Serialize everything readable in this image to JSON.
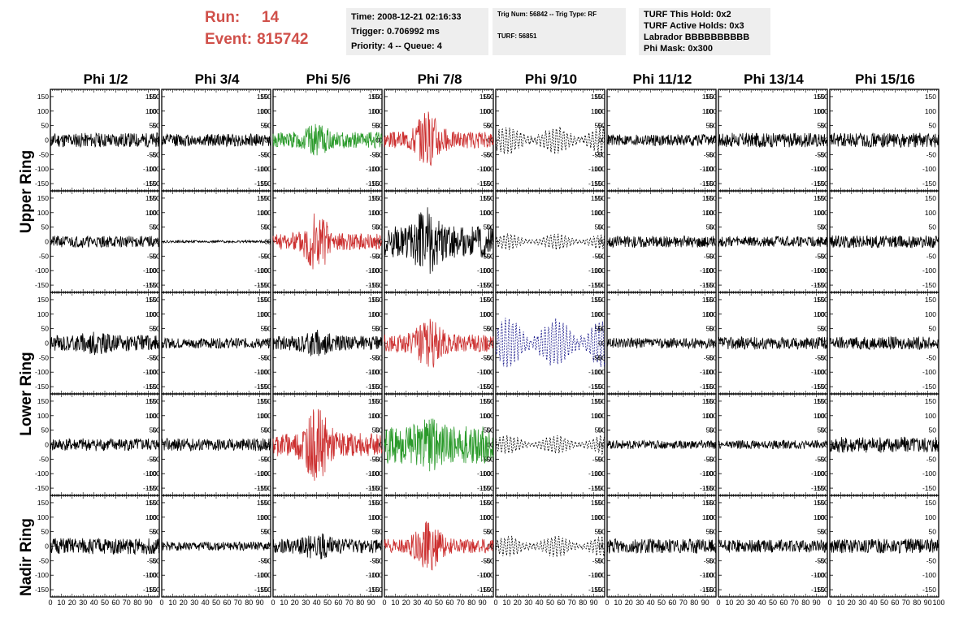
{
  "header": {
    "run_label": "Run:",
    "run_value": "14",
    "event_label": "Event:",
    "event_value": "815742",
    "accent_color": "#d0504a"
  },
  "info_time": {
    "time": "Time: 2008-12-21 02:16:33",
    "trigger": "Trigger: 0.706992 ms",
    "priority": "Priority: 4 -- Queue: 4"
  },
  "info_trig": {
    "trig": "Trig Num: 56842 -- Trig Type: RF",
    "turf": "TURF: 56851"
  },
  "info_turf": {
    "hold": "TURF This Hold: 0x2",
    "active": "TURF Active Holds: 0x3",
    "labrador": "Labrador BBBBBBBBBB",
    "phimask": "Phi Mask: 0x300"
  },
  "columns": [
    "Phi 1/2",
    "Phi 3/4",
    "Phi 5/6",
    "Phi 7/8",
    "Phi 9/10",
    "Phi 11/12",
    "Phi 13/14",
    "Phi 15/16"
  ],
  "rings": [
    "Upper Ring",
    "Lower Ring",
    "Nadir Ring"
  ],
  "chart_data": {
    "type": "line",
    "grid": false,
    "xlim": [
      0,
      100
    ],
    "ylim": [
      -175,
      175
    ],
    "y_ticks": [
      -150,
      -100,
      -50,
      0,
      50,
      100,
      150
    ],
    "x_ticks": [
      0,
      10,
      20,
      30,
      40,
      50,
      60,
      70,
      80,
      90,
      100
    ],
    "colors": {
      "black": "#000000",
      "green": "#2a9a2a",
      "red": "#cc2f2f",
      "blue": "#1a1a8c"
    },
    "panels": [
      [
        {
          "style": "solid",
          "color": "black",
          "amp": 25,
          "burst": 0,
          "seed": 11
        },
        {
          "style": "solid",
          "color": "black",
          "amp": 22,
          "burst": 0,
          "seed": 12
        },
        {
          "style": "solid",
          "color": "green",
          "amp": 28,
          "burst": 1,
          "seed": 13
        },
        {
          "style": "solid",
          "color": "red",
          "amp": 28,
          "burst": 2.6,
          "seed": 14
        },
        {
          "style": "dashed",
          "color": "black",
          "amp": 45,
          "burst": 0.5,
          "seed": 15
        },
        {
          "style": "solid",
          "color": "black",
          "amp": 20,
          "burst": 0,
          "seed": 16
        },
        {
          "style": "solid",
          "color": "black",
          "amp": 25,
          "burst": 0,
          "seed": 17
        },
        {
          "style": "solid",
          "color": "black",
          "amp": 25,
          "burst": 0,
          "seed": 18
        }
      ],
      [
        {
          "style": "solid",
          "color": "black",
          "amp": 20,
          "burst": 0,
          "seed": 21
        },
        {
          "style": "solid",
          "color": "black",
          "amp": 4,
          "burst": 0,
          "seed": 22
        },
        {
          "style": "solid",
          "color": "red",
          "amp": 28,
          "burst": 3,
          "seed": 23
        },
        {
          "style": "solid",
          "color": "black",
          "amp": 55,
          "burst": 1.2,
          "seed": 24
        },
        {
          "style": "dashed",
          "color": "black",
          "amp": 25,
          "burst": 0.2,
          "seed": 25
        },
        {
          "style": "solid",
          "color": "black",
          "amp": 20,
          "burst": 0,
          "seed": 26
        },
        {
          "style": "solid",
          "color": "black",
          "amp": 18,
          "burst": 0,
          "seed": 27
        },
        {
          "style": "solid",
          "color": "black",
          "amp": 22,
          "burst": 0,
          "seed": 28
        }
      ],
      [
        {
          "style": "solid",
          "color": "black",
          "amp": 28,
          "burst": 0.5,
          "seed": 31
        },
        {
          "style": "solid",
          "color": "black",
          "amp": 18,
          "burst": 0,
          "seed": 32
        },
        {
          "style": "solid",
          "color": "black",
          "amp": 25,
          "burst": 1,
          "seed": 33
        },
        {
          "style": "solid",
          "color": "red",
          "amp": 30,
          "burst": 2.2,
          "seed": 34
        },
        {
          "style": "dashed",
          "color": "blue",
          "amp": 80,
          "burst": 0.4,
          "seed": 35
        },
        {
          "style": "solid",
          "color": "black",
          "amp": 18,
          "burst": 0,
          "seed": 36
        },
        {
          "style": "solid",
          "color": "black",
          "amp": 22,
          "burst": 0,
          "seed": 37
        },
        {
          "style": "solid",
          "color": "black",
          "amp": 22,
          "burst": 0,
          "seed": 38
        }
      ],
      [
        {
          "style": "solid",
          "color": "black",
          "amp": 22,
          "burst": 0,
          "seed": 41
        },
        {
          "style": "solid",
          "color": "black",
          "amp": 22,
          "burst": 0,
          "seed": 42
        },
        {
          "style": "solid",
          "color": "red",
          "amp": 40,
          "burst": 2.2,
          "seed": 43
        },
        {
          "style": "solid",
          "color": "green",
          "amp": 65,
          "burst": 0.6,
          "seed": 44
        },
        {
          "style": "dashed",
          "color": "black",
          "amp": 30,
          "burst": 0.4,
          "seed": 45
        },
        {
          "style": "solid",
          "color": "black",
          "amp": 15,
          "burst": 0,
          "seed": 46
        },
        {
          "style": "solid",
          "color": "black",
          "amp": 15,
          "burst": 0,
          "seed": 47
        },
        {
          "style": "solid",
          "color": "black",
          "amp": 28,
          "burst": 0,
          "seed": 48
        }
      ],
      [
        {
          "style": "solid",
          "color": "black",
          "amp": 28,
          "burst": 0,
          "seed": 51
        },
        {
          "style": "solid",
          "color": "black",
          "amp": 15,
          "burst": 0,
          "seed": 52
        },
        {
          "style": "solid",
          "color": "black",
          "amp": 25,
          "burst": 1,
          "seed": 53
        },
        {
          "style": "solid",
          "color": "red",
          "amp": 25,
          "burst": 2.6,
          "seed": 54
        },
        {
          "style": "dashed",
          "color": "black",
          "amp": 35,
          "burst": 0.3,
          "seed": 55
        },
        {
          "style": "solid",
          "color": "black",
          "amp": 25,
          "burst": 0,
          "seed": 56
        },
        {
          "style": "solid",
          "color": "black",
          "amp": 22,
          "burst": 0,
          "seed": 57
        },
        {
          "style": "solid",
          "color": "black",
          "amp": 25,
          "burst": 0,
          "seed": 58
        }
      ]
    ]
  }
}
